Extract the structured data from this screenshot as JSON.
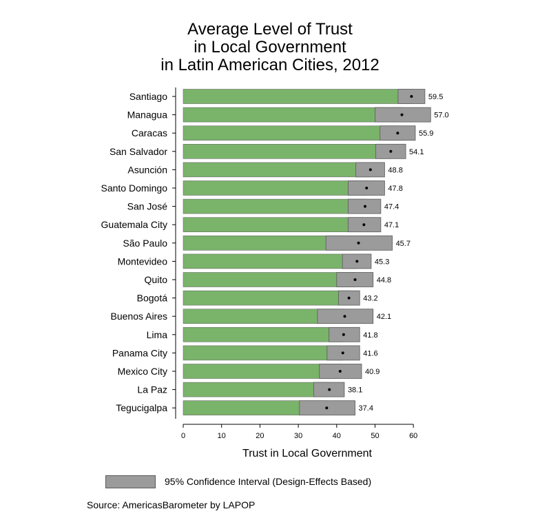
{
  "title_lines": [
    "Average Level of Trust",
    "in Local Government",
    "in Latin American Cities, 2012"
  ],
  "xlabel": "Trust in Local Government",
  "legend": {
    "label": "95% Confidence Interval (Design-Effects Based)"
  },
  "source": "Source: AmericasBarometer by LAPOP",
  "colors": {
    "bar": "#7ab36a",
    "ci": "#9b9b9b",
    "ci_border": "#5a5a5a",
    "point": "#000000"
  },
  "chart_data": {
    "type": "bar",
    "orientation": "horizontal",
    "title": "Average Level of Trust in Local Government in Latin American Cities, 2012",
    "xlabel": "Trust in Local Government",
    "ylabel": "",
    "xlim": [
      0,
      65
    ],
    "xticks": [
      0,
      10,
      20,
      30,
      40,
      50,
      60
    ],
    "grid": false,
    "legend_position": "bottom",
    "categories": [
      "Santiago",
      "Managua",
      "Caracas",
      "San Salvador",
      "Asunción",
      "Santo Domingo",
      "San José",
      "Guatemala City",
      "São Paulo",
      "Montevideo",
      "Quito",
      "Bogotá",
      "Buenos Aires",
      "Lima",
      "Panama City",
      "Mexico City",
      "La Paz",
      "Tegucigalpa"
    ],
    "values": [
      59.5,
      57.0,
      55.9,
      54.1,
      48.8,
      47.8,
      47.4,
      47.1,
      45.7,
      45.3,
      44.8,
      43.2,
      42.1,
      41.8,
      41.6,
      40.9,
      38.1,
      37.4
    ],
    "value_labels": [
      "59.5",
      "57.0",
      "55.9",
      "54.1",
      "48.8",
      "47.8",
      "47.4",
      "47.1",
      "45.7",
      "45.3",
      "44.8",
      "43.2",
      "42.1",
      "41.8",
      "41.6",
      "40.9",
      "38.1",
      "37.4"
    ],
    "ci_lower": [
      56.0,
      50.0,
      51.3,
      50.2,
      45.0,
      43.0,
      43.0,
      43.0,
      37.2,
      41.5,
      40.0,
      40.5,
      35.0,
      38.0,
      37.5,
      35.5,
      34.0,
      30.3
    ],
    "ci_upper": [
      63.0,
      64.5,
      60.5,
      58.0,
      52.5,
      52.5,
      51.5,
      51.5,
      54.5,
      49.0,
      49.5,
      46.0,
      49.5,
      46.0,
      46.0,
      46.5,
      42.0,
      44.8
    ]
  }
}
